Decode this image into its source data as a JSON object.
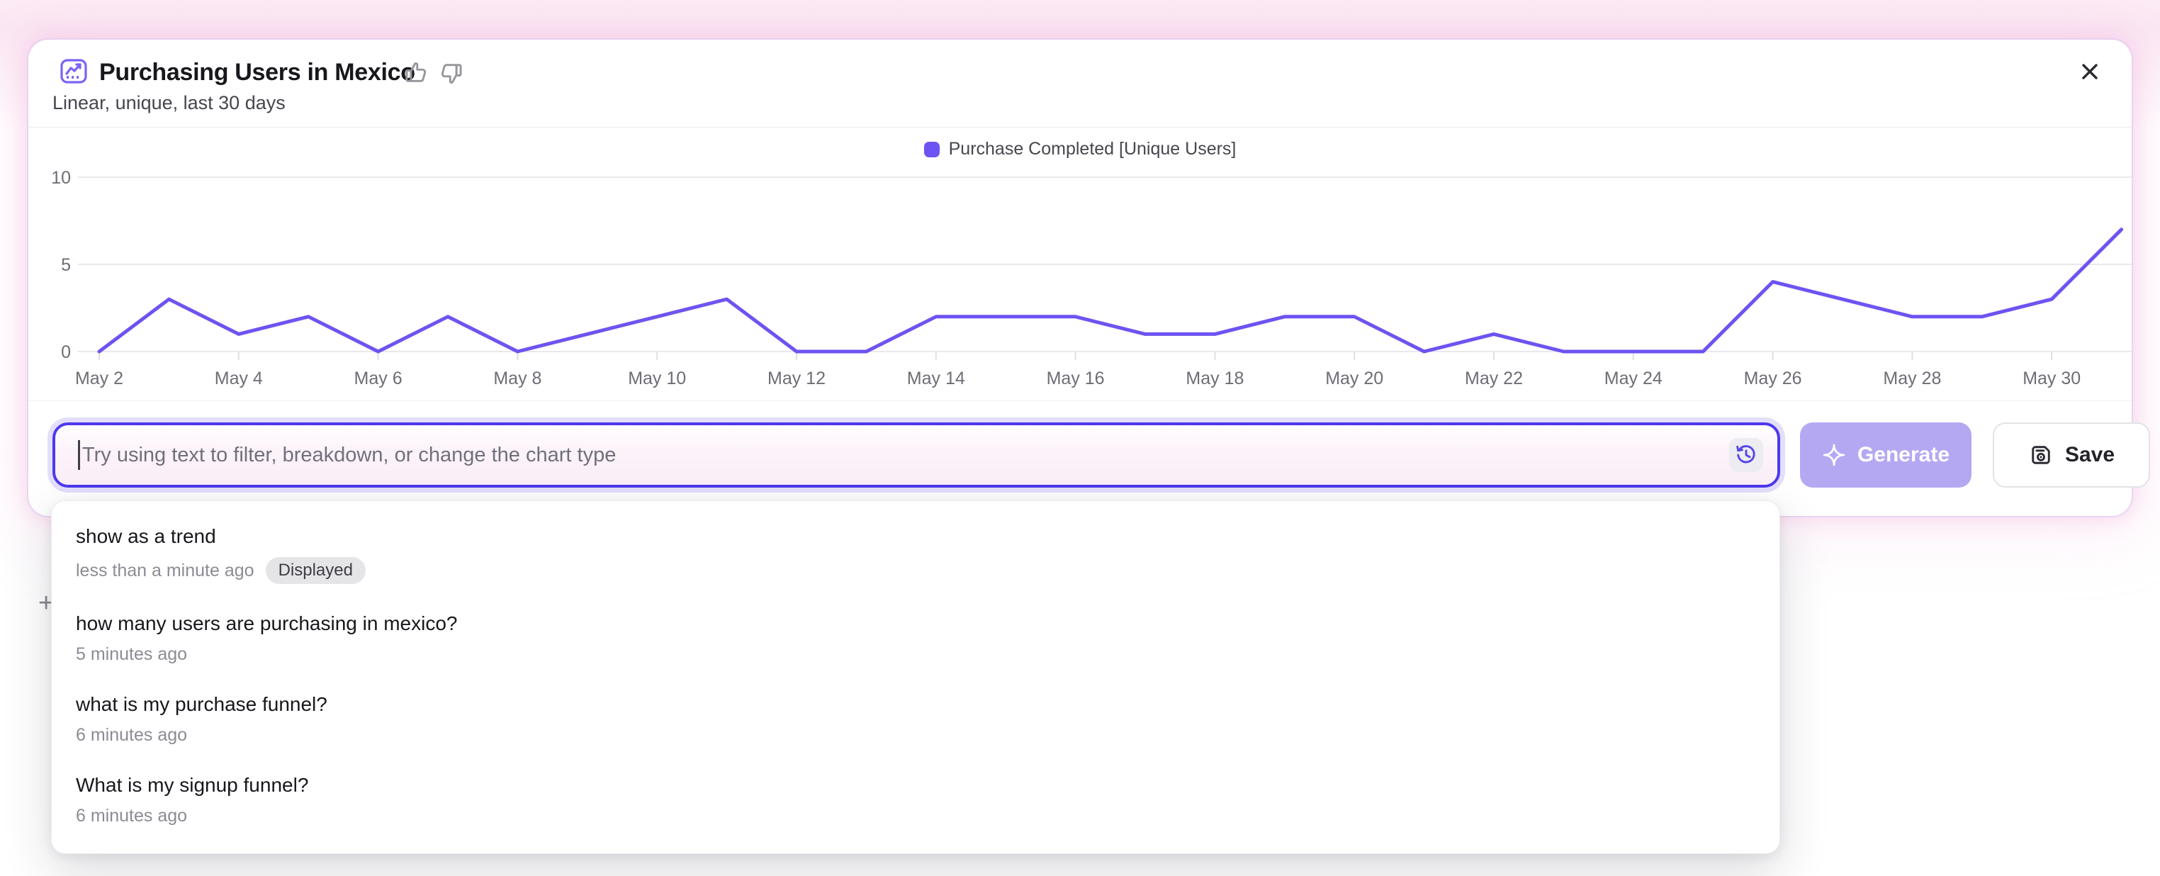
{
  "header": {
    "title": "Purchasing Users in Mexico",
    "subtitle": "Linear, unique, last 30 days"
  },
  "chart_data": {
    "type": "line",
    "title": "Purchasing Users in Mexico",
    "x": [
      "May 2",
      "May 3",
      "May 4",
      "May 5",
      "May 6",
      "May 7",
      "May 8",
      "May 9",
      "May 10",
      "May 11",
      "May 12",
      "May 13",
      "May 14",
      "May 15",
      "May 16",
      "May 17",
      "May 18",
      "May 19",
      "May 20",
      "May 21",
      "May 22",
      "May 23",
      "May 24",
      "May 25",
      "May 26",
      "May 27",
      "May 28",
      "May 29",
      "May 30",
      "May 31"
    ],
    "series": [
      {
        "name": "Purchase Completed [Unique Users]",
        "color": "#6c54f2",
        "values": [
          0,
          3,
          1,
          2,
          0,
          2,
          0,
          1,
          2,
          3,
          0,
          0,
          2,
          2,
          2,
          1,
          1,
          2,
          2,
          0,
          1,
          0,
          0,
          0,
          4,
          3,
          2,
          2,
          3,
          7
        ]
      }
    ],
    "xtick_labels": [
      "May 2",
      "May 4",
      "May 6",
      "May 8",
      "May 10",
      "May 12",
      "May 14",
      "May 16",
      "May 18",
      "May 20",
      "May 22",
      "May 24",
      "May 26",
      "May 28",
      "May 30"
    ],
    "yticks": [
      0,
      5,
      10
    ],
    "ylim": [
      0,
      10
    ],
    "grid": "horizontal",
    "legend_position": "top-center"
  },
  "prompt_bar": {
    "placeholder": "Try using text to filter, breakdown, or change the chart type",
    "value": "",
    "generate_label": "Generate",
    "generate_enabled": false,
    "save_label": "Save"
  },
  "history_dropdown": {
    "items": [
      {
        "query": "show as a trend",
        "time": "less than a minute ago",
        "badge": "Displayed"
      },
      {
        "query": "how many users are purchasing in mexico?",
        "time": "5 minutes ago"
      },
      {
        "query": "what is my purchase funnel?",
        "time": "6 minutes ago"
      },
      {
        "query": "What is my signup funnel?",
        "time": "6 minutes ago"
      }
    ]
  },
  "background": {
    "partial_plus": "+"
  },
  "colors": {
    "accent_purple": "#6c54f2",
    "input_border": "#4c39ee",
    "generate_bg": "#b5a8f3",
    "badge_bg": "#e5e5e8",
    "pink_glow": "#f5b7df"
  }
}
